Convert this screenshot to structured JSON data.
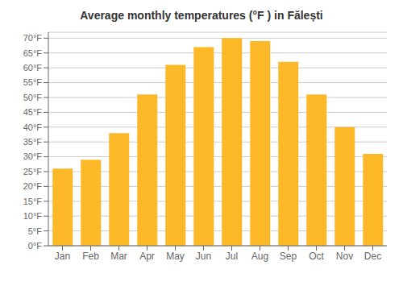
{
  "chart_data": {
    "type": "bar",
    "title": "Average monthly temperatures (°F ) in Fălești",
    "categories": [
      "Jan",
      "Feb",
      "Mar",
      "Apr",
      "May",
      "Jun",
      "Jul",
      "Aug",
      "Sep",
      "Oct",
      "Nov",
      "Dec"
    ],
    "values": [
      26,
      29,
      38,
      51,
      61,
      67,
      70,
      69,
      62,
      51,
      40,
      31
    ],
    "color": "#FDB827",
    "ylim": [
      0,
      72
    ],
    "yticks": [
      {
        "value": 0,
        "label": "0°F"
      },
      {
        "value": 5,
        "label": "5°F"
      },
      {
        "value": 10,
        "label": "10°F"
      },
      {
        "value": 15,
        "label": "15°F"
      },
      {
        "value": 20,
        "label": "20°F"
      },
      {
        "value": 25,
        "label": "25°F"
      },
      {
        "value": 30,
        "label": "30°F"
      },
      {
        "value": 35,
        "label": "35°F"
      },
      {
        "value": 40,
        "label": "40°F"
      },
      {
        "value": 45,
        "label": "45°F"
      },
      {
        "value": 50,
        "label": "50°F"
      },
      {
        "value": 55,
        "label": "55°F"
      },
      {
        "value": 60,
        "label": "60°F"
      },
      {
        "value": 65,
        "label": "65°F"
      },
      {
        "value": 70,
        "label": "70°F"
      }
    ],
    "grid": true
  }
}
